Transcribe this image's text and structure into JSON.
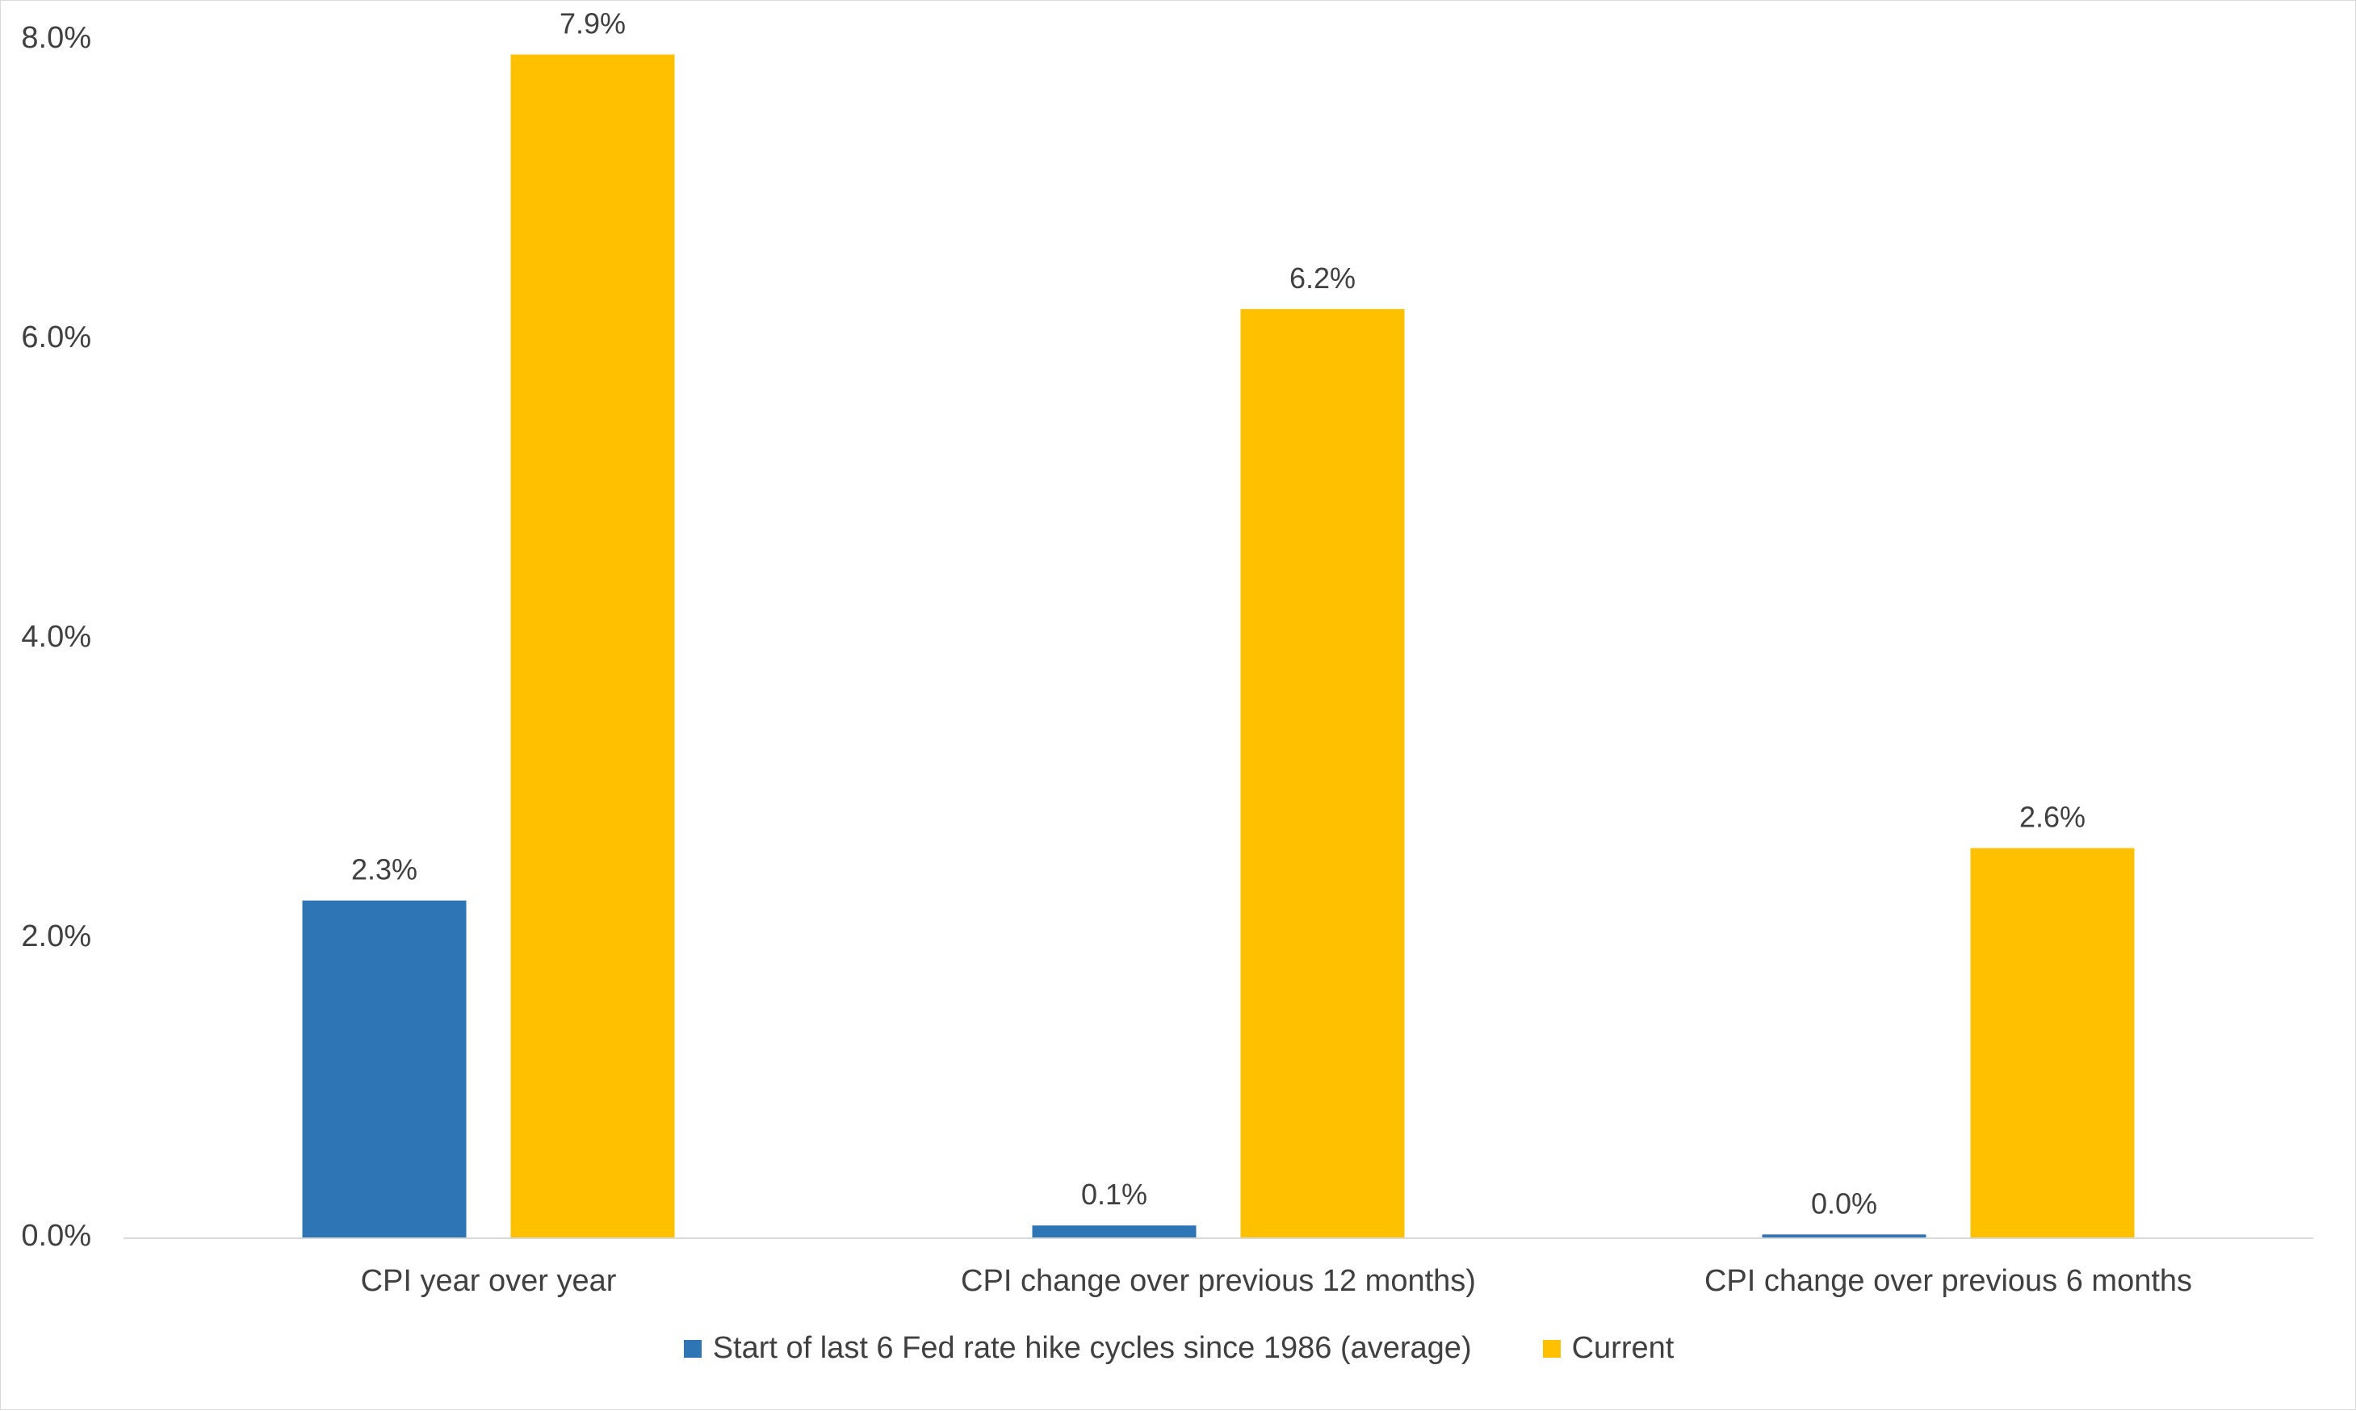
{
  "chart_data": {
    "type": "bar",
    "title": "",
    "xlabel": "",
    "ylabel": "",
    "categories": [
      "CPI year over year",
      "CPI change over previous 12 months)",
      "CPI change over previous 6 months"
    ],
    "series": [
      {
        "name": "Start of last 6 Fed rate hike cycles since 1986 (average)",
        "values": [
          2.25,
          0.08,
          0.02
        ],
        "data_labels": [
          "2.3%",
          "0.1%",
          "0.0%"
        ],
        "color": "#2E75B6"
      },
      {
        "name": "Current",
        "values": [
          7.9,
          6.2,
          2.6
        ],
        "data_labels": [
          "7.9%",
          "6.2%",
          "2.6%"
        ],
        "color": "#FFC000"
      }
    ],
    "ylim": [
      0,
      8
    ],
    "y_ticks": [
      0,
      2,
      4,
      6,
      8
    ],
    "y_tick_labels": [
      "0.0%",
      "2.0%",
      "4.0%",
      "6.0%",
      "8.0%"
    ],
    "grid": false,
    "legend_position": "bottom"
  }
}
